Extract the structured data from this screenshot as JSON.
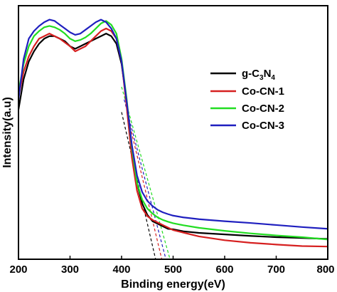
{
  "chart_data": {
    "type": "line",
    "title": "",
    "xlabel": "Binding energy(eV)",
    "ylabel": "Intensity(a.u)",
    "xlim": [
      200,
      800
    ],
    "ylim": [
      0,
      1
    ],
    "xticks": [
      200,
      300,
      400,
      500,
      600,
      700,
      800
    ],
    "xtick_labels": [
      "200",
      "300",
      "400",
      "500",
      "600",
      "700",
      "800"
    ],
    "yticks_shown": false,
    "grid": false,
    "legend_position": "right",
    "legend": [
      {
        "label_main": "g-C",
        "label_sub1": "3",
        "label_mid": "N",
        "label_sub2": "4",
        "color": "#000000"
      },
      {
        "label_main": "Co-CN-1",
        "color": "#d62020"
      },
      {
        "label_main": "Co-CN-2",
        "color": "#22dd22"
      },
      {
        "label_main": "Co-CN-3",
        "color": "#1f1fbf"
      }
    ],
    "series": [
      {
        "name": "g-C3N4",
        "color": "#000000",
        "x": [
          200,
          210,
          220,
          230,
          240,
          250,
          260,
          270,
          280,
          290,
          300,
          310,
          320,
          330,
          340,
          350,
          360,
          370,
          380,
          390,
          400,
          410,
          420,
          430,
          440,
          450,
          460,
          470,
          480,
          490,
          500,
          520,
          550,
          600,
          650,
          700,
          750,
          800
        ],
        "y": [
          0.59,
          0.71,
          0.78,
          0.82,
          0.85,
          0.87,
          0.88,
          0.88,
          0.87,
          0.86,
          0.84,
          0.83,
          0.84,
          0.85,
          0.86,
          0.87,
          0.88,
          0.89,
          0.88,
          0.85,
          0.77,
          0.62,
          0.44,
          0.3,
          0.22,
          0.175,
          0.15,
          0.14,
          0.13,
          0.12,
          0.118,
          0.11,
          0.104,
          0.098,
          0.092,
          0.087,
          0.084,
          0.08
        ]
      },
      {
        "name": "Co-CN-1",
        "color": "#d62020",
        "x": [
          200,
          210,
          220,
          230,
          240,
          250,
          260,
          270,
          280,
          290,
          300,
          310,
          320,
          330,
          340,
          350,
          360,
          370,
          380,
          390,
          400,
          410,
          420,
          430,
          440,
          450,
          460,
          470,
          480,
          490,
          500,
          520,
          550,
          600,
          650,
          700,
          750,
          800
        ],
        "y": [
          0.64,
          0.74,
          0.8,
          0.84,
          0.87,
          0.88,
          0.89,
          0.88,
          0.87,
          0.855,
          0.84,
          0.82,
          0.83,
          0.84,
          0.86,
          0.88,
          0.9,
          0.91,
          0.9,
          0.87,
          0.78,
          0.6,
          0.4,
          0.27,
          0.2,
          0.17,
          0.155,
          0.145,
          0.135,
          0.125,
          0.115,
          0.105,
          0.09,
          0.075,
          0.065,
          0.058,
          0.052,
          0.05
        ]
      },
      {
        "name": "Co-CN-2",
        "color": "#22dd22",
        "x": [
          200,
          210,
          220,
          230,
          240,
          250,
          260,
          270,
          280,
          290,
          300,
          310,
          320,
          330,
          340,
          350,
          360,
          370,
          380,
          390,
          400,
          410,
          420,
          430,
          440,
          450,
          460,
          470,
          480,
          490,
          500,
          520,
          550,
          600,
          650,
          700,
          750,
          800
        ],
        "y": [
          0.66,
          0.77,
          0.84,
          0.88,
          0.9,
          0.915,
          0.92,
          0.915,
          0.905,
          0.89,
          0.87,
          0.86,
          0.865,
          0.875,
          0.89,
          0.91,
          0.93,
          0.94,
          0.925,
          0.89,
          0.79,
          0.63,
          0.44,
          0.3,
          0.235,
          0.2,
          0.18,
          0.165,
          0.155,
          0.148,
          0.142,
          0.134,
          0.124,
          0.112,
          0.102,
          0.094,
          0.087,
          0.078
        ]
      },
      {
        "name": "Co-CN-3",
        "color": "#1f1fbf",
        "x": [
          200,
          210,
          220,
          230,
          240,
          250,
          260,
          270,
          280,
          290,
          300,
          310,
          320,
          330,
          340,
          350,
          360,
          370,
          380,
          390,
          400,
          410,
          420,
          430,
          440,
          450,
          460,
          470,
          480,
          490,
          500,
          520,
          550,
          600,
          650,
          700,
          750,
          800
        ],
        "y": [
          0.63,
          0.79,
          0.87,
          0.9,
          0.92,
          0.935,
          0.945,
          0.94,
          0.925,
          0.91,
          0.895,
          0.885,
          0.89,
          0.905,
          0.92,
          0.935,
          0.945,
          0.935,
          0.91,
          0.87,
          0.78,
          0.62,
          0.45,
          0.33,
          0.265,
          0.23,
          0.21,
          0.195,
          0.185,
          0.178,
          0.172,
          0.165,
          0.158,
          0.15,
          0.143,
          0.135,
          0.127,
          0.12
        ]
      }
    ],
    "tangent_lines": [
      {
        "color": "#000000",
        "x": [
          400,
          466
        ],
        "y": [
          0.58,
          0.0
        ]
      },
      {
        "color": "#d62020",
        "x": [
          410,
          478
        ],
        "y": [
          0.58,
          0.0
        ]
      },
      {
        "color": "#1f1fbf",
        "x": [
          405,
          486
        ],
        "y": [
          0.63,
          0.0
        ]
      },
      {
        "color": "#22dd22",
        "x": [
          400,
          494
        ],
        "y": [
          0.68,
          0.0
        ]
      }
    ]
  }
}
